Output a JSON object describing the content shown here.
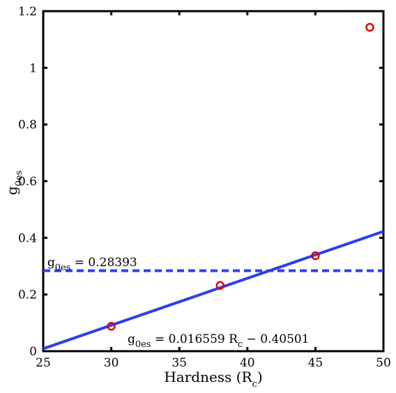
{
  "chart_data": {
    "type": "scatter",
    "title": "",
    "xlabel": "Hardness (R",
    "xlabel_sub": "c",
    "xlabel_close": ")",
    "ylabel_main": "g",
    "ylabel_sub": "0es",
    "xlim": [
      25,
      50
    ],
    "ylim": [
      0,
      1.2
    ],
    "xticks": [
      25,
      30,
      35,
      40,
      45,
      50
    ],
    "yticks": [
      0,
      0.2,
      0.4,
      0.6,
      0.8,
      1,
      1.2
    ],
    "xtick_labels": [
      "25",
      "30",
      "35",
      "40",
      "45",
      "50"
    ],
    "ytick_labels": [
      "0",
      "0.2",
      "0.4",
      "0.6",
      "0.8",
      "1",
      "1.2"
    ],
    "grid": false,
    "series": [
      {
        "kind": "points",
        "marker": "circle-open",
        "color": "#e00000",
        "x": [
          30,
          38,
          45,
          49
        ],
        "y": [
          0.088,
          0.232,
          0.337,
          1.143
        ]
      },
      {
        "kind": "line",
        "style": "solid",
        "color": "#2b3ff0",
        "x": [
          25,
          50
        ],
        "y": [
          0.00874,
          0.42272
        ]
      },
      {
        "kind": "line",
        "style": "dashed",
        "color": "#2b3ff0",
        "x": [
          25,
          50
        ],
        "y": [
          0.28393,
          0.28393
        ]
      }
    ],
    "annotations": {
      "mean": {
        "prefix": "g",
        "sub": "0es",
        "text": " = 0.28393",
        "x": 25.3,
        "y": 0.3
      },
      "fit": {
        "prefix": "g",
        "sub": "0es",
        "mid": " = 0.016559 R",
        "sub2": "c",
        "tail": " − 0.40501",
        "x": 31.2,
        "y": 0.03
      }
    }
  }
}
